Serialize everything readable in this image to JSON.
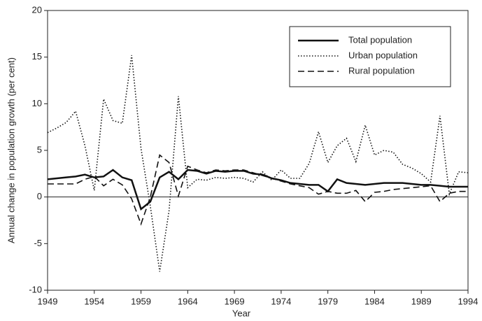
{
  "chart_data": {
    "type": "line",
    "xlabel": "Year",
    "ylabel": "Annual change in population growth (per cent)",
    "x": [
      1949,
      1950,
      1951,
      1952,
      1953,
      1954,
      1955,
      1956,
      1957,
      1958,
      1959,
      1960,
      1961,
      1962,
      1963,
      1964,
      1965,
      1966,
      1967,
      1968,
      1969,
      1970,
      1971,
      1972,
      1973,
      1974,
      1975,
      1976,
      1977,
      1978,
      1979,
      1980,
      1981,
      1982,
      1983,
      1984,
      1985,
      1986,
      1987,
      1988,
      1989,
      1990,
      1991,
      1992,
      1993,
      1994
    ],
    "series": [
      {
        "name": "Total population",
        "color": "#111111",
        "style": "solid",
        "values": [
          1.9,
          2.0,
          2.1,
          2.2,
          2.4,
          2.1,
          2.2,
          2.9,
          2.1,
          1.8,
          -1.3,
          -0.5,
          2.1,
          2.7,
          1.9,
          2.9,
          2.8,
          2.5,
          2.8,
          2.7,
          2.8,
          2.8,
          2.5,
          2.4,
          2.0,
          1.8,
          1.5,
          1.4,
          1.3,
          1.3,
          0.6,
          1.9,
          1.5,
          1.4,
          1.3,
          1.4,
          1.5,
          1.5,
          1.5,
          1.4,
          1.3,
          1.3,
          1.2,
          1.1,
          1.1,
          1.1
        ]
      },
      {
        "name": "Urban population",
        "color": "#111111",
        "style": "dotted",
        "values": [
          6.9,
          7.4,
          8.0,
          9.2,
          5.5,
          0.7,
          10.5,
          8.2,
          7.9,
          15.2,
          5.2,
          -1.0,
          -8.0,
          -1.5,
          10.8,
          1.0,
          1.9,
          1.8,
          2.1,
          2.0,
          2.1,
          2.0,
          1.6,
          2.7,
          1.8,
          2.9,
          2.0,
          2.0,
          3.6,
          7.0,
          3.7,
          5.5,
          6.3,
          3.8,
          7.7,
          4.5,
          5.0,
          4.8,
          3.5,
          3.1,
          2.5,
          1.6,
          8.7,
          0.3,
          2.7,
          2.6
        ]
      },
      {
        "name": "Rural population",
        "color": "#111111",
        "style": "dashed",
        "values": [
          1.4,
          1.4,
          1.4,
          1.4,
          1.9,
          2.2,
          1.2,
          1.9,
          1.3,
          -0.2,
          -2.9,
          0.0,
          4.5,
          3.7,
          0.1,
          3.3,
          2.9,
          2.6,
          2.9,
          2.8,
          2.9,
          2.9,
          2.6,
          2.3,
          2.0,
          1.7,
          1.4,
          1.2,
          1.0,
          0.3,
          0.6,
          0.4,
          0.4,
          0.7,
          -0.5,
          0.5,
          0.6,
          0.8,
          0.9,
          1.0,
          1.1,
          1.2,
          -0.5,
          0.4,
          0.6,
          0.6
        ]
      }
    ],
    "xlim": [
      1949,
      1994
    ],
    "xticks": [
      1949,
      1954,
      1959,
      1964,
      1969,
      1974,
      1979,
      1984,
      1989,
      1994
    ],
    "ylim": [
      -10,
      20
    ],
    "yticks": [
      -10,
      -5,
      0,
      5,
      10,
      15,
      20
    ],
    "zero_line": true,
    "legend": "upper right"
  }
}
